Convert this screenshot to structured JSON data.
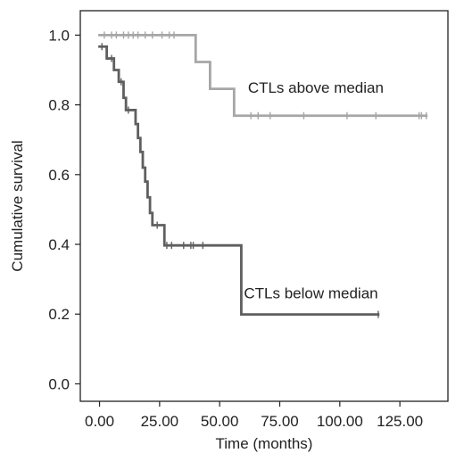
{
  "chart_data": {
    "type": "line",
    "step": true,
    "xlabel": "Time (months)",
    "ylabel": "Cumulative survival",
    "xlim": [
      -8,
      145
    ],
    "ylim": [
      -0.05,
      1.07
    ],
    "x_ticks": [
      0,
      25,
      50,
      75,
      100,
      125
    ],
    "x_tick_labels": [
      "0.00",
      "25.00",
      "50.00",
      "75.00",
      "100.00",
      "125.00"
    ],
    "y_ticks": [
      0.0,
      0.2,
      0.4,
      0.6,
      0.8,
      1.0
    ],
    "y_tick_labels": [
      "0.0",
      "0.2",
      "0.4",
      "0.6",
      "0.8",
      "1.0"
    ],
    "grid": false,
    "series": [
      {
        "name": "CTLs above median",
        "color": "#a6a6a6",
        "steps": [
          [
            0,
            1.0
          ],
          [
            40,
            0.923
          ],
          [
            46,
            0.846
          ],
          [
            56,
            0.769
          ],
          [
            136,
            0.769
          ]
        ],
        "censored": [
          [
            2,
            1.0
          ],
          [
            5,
            1.0
          ],
          [
            7,
            1.0
          ],
          [
            10,
            1.0
          ],
          [
            12,
            1.0
          ],
          [
            14,
            1.0
          ],
          [
            16,
            1.0
          ],
          [
            19,
            1.0
          ],
          [
            22,
            1.0
          ],
          [
            26,
            1.0
          ],
          [
            29,
            1.0
          ],
          [
            31,
            1.0
          ],
          [
            63,
            0.769
          ],
          [
            66,
            0.769
          ],
          [
            71,
            0.769
          ],
          [
            85,
            0.769
          ],
          [
            103,
            0.769
          ],
          [
            115,
            0.769
          ],
          [
            133,
            0.769
          ],
          [
            134,
            0.769
          ],
          [
            136,
            0.769
          ]
        ]
      },
      {
        "name": "CTLs below median",
        "color": "#5f5f5f",
        "steps": [
          [
            0,
            0.967
          ],
          [
            3,
            0.933
          ],
          [
            6,
            0.9
          ],
          [
            8,
            0.866
          ],
          [
            10,
            0.82
          ],
          [
            11,
            0.785
          ],
          [
            14,
            0.785
          ],
          [
            15,
            0.745
          ],
          [
            16,
            0.705
          ],
          [
            17,
            0.665
          ],
          [
            18,
            0.62
          ],
          [
            19,
            0.58
          ],
          [
            20,
            0.535
          ],
          [
            21,
            0.49
          ],
          [
            22,
            0.455
          ],
          [
            27,
            0.397
          ],
          [
            59,
            0.199
          ],
          [
            116,
            0.199
          ]
        ],
        "censored": [
          [
            1,
            0.967
          ],
          [
            5,
            0.933
          ],
          [
            9,
            0.866
          ],
          [
            12,
            0.785
          ],
          [
            24,
            0.455
          ],
          [
            28,
            0.397
          ],
          [
            30,
            0.397
          ],
          [
            35,
            0.397
          ],
          [
            38,
            0.397
          ],
          [
            39,
            0.397
          ],
          [
            43,
            0.397
          ],
          [
            116,
            0.199
          ]
        ]
      }
    ],
    "annotations": [
      {
        "text": "CTLs above median",
        "x": 90,
        "y": 0.835
      },
      {
        "text": "CTLs below median",
        "x": 88,
        "y": 0.245
      }
    ]
  }
}
